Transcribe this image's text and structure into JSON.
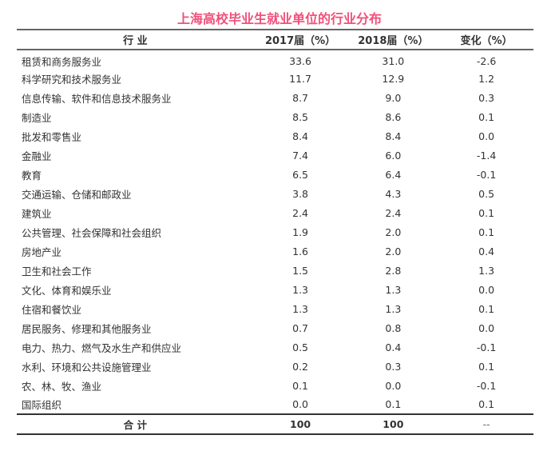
{
  "title": "上海高校毕业生就业单位的行业分布",
  "headers": {
    "industry": "行 业",
    "y2017": "2017届（%）",
    "y2018": "2018届（%）",
    "change": "变化（%）"
  },
  "rows": [
    {
      "industry": "租赁和商务服务业",
      "y2017": "33.6",
      "y2018": "31.0",
      "change": "-2.6"
    },
    {
      "industry": "科学研究和技术服务业",
      "y2017": "11.7",
      "y2018": "12.9",
      "change": "1.2"
    },
    {
      "industry": "信息传输、软件和信息技术服务业",
      "y2017": "8.7",
      "y2018": "9.0",
      "change": "0.3"
    },
    {
      "industry": "制造业",
      "y2017": "8.5",
      "y2018": "8.6",
      "change": "0.1"
    },
    {
      "industry": "批发和零售业",
      "y2017": "8.4",
      "y2018": "8.4",
      "change": "0.0"
    },
    {
      "industry": "金融业",
      "y2017": "7.4",
      "y2018": "6.0",
      "change": "-1.4"
    },
    {
      "industry": "教育",
      "y2017": "6.5",
      "y2018": "6.4",
      "change": "-0.1"
    },
    {
      "industry": "交通运输、仓储和邮政业",
      "y2017": "3.8",
      "y2018": "4.3",
      "change": "0.5"
    },
    {
      "industry": "建筑业",
      "y2017": "2.4",
      "y2018": "2.4",
      "change": "0.1"
    },
    {
      "industry": "公共管理、社会保障和社会组织",
      "y2017": "1.9",
      "y2018": "2.0",
      "change": "0.1"
    },
    {
      "industry": "房地产业",
      "y2017": "1.6",
      "y2018": "2.0",
      "change": "0.4"
    },
    {
      "industry": "卫生和社会工作",
      "y2017": "1.5",
      "y2018": "2.8",
      "change": "1.3"
    },
    {
      "industry": "文化、体育和娱乐业",
      "y2017": "1.3",
      "y2018": "1.3",
      "change": "0.0"
    },
    {
      "industry": "住宿和餐饮业",
      "y2017": "1.3",
      "y2018": "1.3",
      "change": "0.1"
    },
    {
      "industry": "居民服务、修理和其他服务业",
      "y2017": "0.7",
      "y2018": "0.8",
      "change": "0.0"
    },
    {
      "industry": "电力、热力、燃气及水生产和供应业",
      "y2017": "0.5",
      "y2018": "0.4",
      "change": "-0.1"
    },
    {
      "industry": "水利、环境和公共设施管理业",
      "y2017": "0.2",
      "y2018": "0.3",
      "change": "0.1"
    },
    {
      "industry": "农、林、牧、渔业",
      "y2017": "0.1",
      "y2018": "0.0",
      "change": "-0.1"
    },
    {
      "industry": "国际组织",
      "y2017": "0.0",
      "y2018": "0.1",
      "change": "0.1"
    }
  ],
  "total": {
    "label": "合 计",
    "y2017": "100",
    "y2018": "100",
    "change": "--"
  },
  "colors": {
    "title": "#f0507a"
  }
}
